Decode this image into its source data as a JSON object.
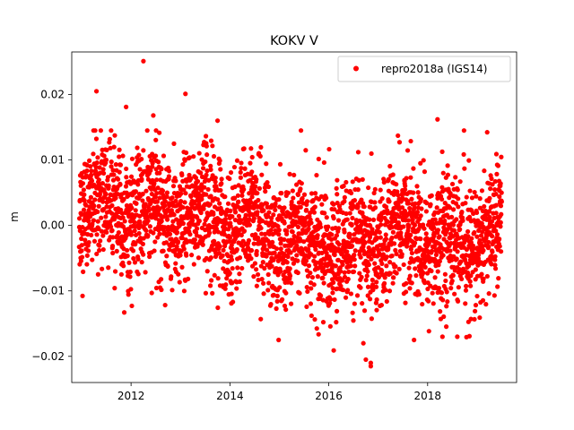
{
  "chart_data": {
    "type": "scatter",
    "title": "KOKV V",
    "xlabel": "",
    "ylabel": "m",
    "xlim": [
      2010.8,
      2019.8
    ],
    "ylim": [
      -0.024,
      0.0265
    ],
    "x_ticks": [
      2012,
      2014,
      2016,
      2018
    ],
    "x_tick_labels": [
      "2012",
      "2014",
      "2016",
      "2018"
    ],
    "y_ticks": [
      -0.02,
      -0.01,
      0.0,
      0.01,
      0.02
    ],
    "y_tick_labels": [
      "−0.02",
      "−0.01",
      "0.00",
      "0.01",
      "0.02"
    ],
    "legend": {
      "position": "upper right",
      "entries": [
        "repro2018a (IGS14)"
      ]
    },
    "grid": false,
    "series": [
      {
        "name": "repro2018a (IGS14)",
        "color": "#ff0000",
        "marker": "circle",
        "x_range": [
          2010.95,
          2019.5
        ],
        "trend": [
          {
            "x": 2011.0,
            "y": 0.0035
          },
          {
            "x": 2011.5,
            "y": 0.0025
          },
          {
            "x": 2012.0,
            "y": 0.002
          },
          {
            "x": 2012.5,
            "y": 0.0015
          },
          {
            "x": 2013.0,
            "y": 0.0012
          },
          {
            "x": 2013.5,
            "y": 0.002
          },
          {
            "x": 2014.0,
            "y": 0.0005
          },
          {
            "x": 2014.5,
            "y": -0.0005
          },
          {
            "x": 2015.0,
            "y": -0.0015
          },
          {
            "x": 2015.5,
            "y": -0.0025
          },
          {
            "x": 2016.0,
            "y": -0.003
          },
          {
            "x": 2016.5,
            "y": -0.004
          },
          {
            "x": 2017.0,
            "y": -0.002
          },
          {
            "x": 2017.5,
            "y": -0.001
          },
          {
            "x": 2018.0,
            "y": -0.0015
          },
          {
            "x": 2018.5,
            "y": -0.003
          },
          {
            "x": 2019.0,
            "y": -0.0025
          },
          {
            "x": 2019.5,
            "y": -0.0005
          }
        ],
        "outliers": [
          {
            "x": 2012.25,
            "y": 0.0251
          },
          {
            "x": 2011.3,
            "y": 0.0205
          },
          {
            "x": 2013.1,
            "y": 0.0201
          },
          {
            "x": 2011.9,
            "y": 0.0181
          },
          {
            "x": 2013.75,
            "y": 0.016
          },
          {
            "x": 2018.2,
            "y": 0.0162
          },
          {
            "x": 2012.45,
            "y": 0.0168
          },
          {
            "x": 2016.85,
            "y": -0.0215
          },
          {
            "x": 2016.85,
            "y": -0.021
          },
          {
            "x": 2016.75,
            "y": -0.0205
          },
          {
            "x": 2016.7,
            "y": -0.018
          },
          {
            "x": 2016.1,
            "y": -0.0191
          },
          {
            "x": 2018.6,
            "y": -0.017
          },
          {
            "x": 2018.3,
            "y": -0.017
          }
        ]
      }
    ]
  }
}
